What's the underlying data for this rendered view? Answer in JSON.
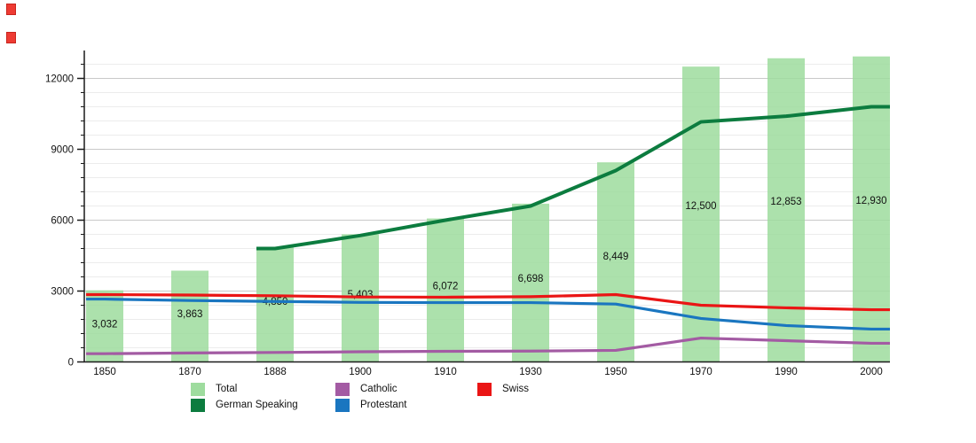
{
  "decorations": {
    "top_left_squares": {
      "count": 2,
      "color": "#ee3b33"
    }
  },
  "chart_data": {
    "type": "bar",
    "title": "",
    "xlabel": "",
    "ylabel": "",
    "categories": [
      "1850",
      "1870",
      "1888",
      "1900",
      "1910",
      "1930",
      "1950",
      "1970",
      "1990",
      "2000"
    ],
    "ylim": [
      0,
      12930
    ],
    "yticks": [
      0,
      3000,
      6000,
      9000,
      12000
    ],
    "y_tick_labels": [
      "0",
      "3000",
      "6000",
      "9000",
      "12000"
    ],
    "minor_grid_step": 600,
    "grid": true,
    "legend_position": "bottom",
    "bar_series": {
      "name": "Total",
      "color": "#9edc9e",
      "values": [
        3032,
        3863,
        4850,
        5403,
        6072,
        6698,
        8449,
        12500,
        12853,
        12930
      ],
      "labels": [
        "3,032",
        "3,863",
        "4,850",
        "5,403",
        "6,072",
        "6,698",
        "8,449",
        "12,500",
        "12,853",
        "12,930"
      ]
    },
    "line_series": [
      {
        "name": "German Speaking",
        "color": "#0c7c3f",
        "width": 4,
        "values": [
          null,
          null,
          4800,
          5350,
          6000,
          6600,
          8100,
          10160,
          10400,
          10800
        ]
      },
      {
        "name": "Catholic",
        "color": "#a35ba3",
        "width": 3.2,
        "values": [
          350,
          380,
          400,
          430,
          450,
          460,
          490,
          1010,
          900,
          790
        ]
      },
      {
        "name": "Protestant",
        "color": "#1a76c0",
        "width": 3.2,
        "values": [
          2660,
          2600,
          2560,
          2520,
          2510,
          2510,
          2450,
          1840,
          1540,
          1390
        ]
      },
      {
        "name": "Swiss",
        "color": "#ea1515",
        "width": 3.2,
        "values": [
          2850,
          2830,
          2800,
          2750,
          2740,
          2760,
          2850,
          2400,
          2290,
          2210
        ]
      }
    ],
    "legend_columns": [
      {
        "x": 215,
        "entries": [
          "Total",
          "German Speaking"
        ]
      },
      {
        "x": 378,
        "entries": [
          "Catholic",
          "Protestant"
        ]
      },
      {
        "x": 538,
        "entries": [
          "Swiss"
        ]
      }
    ]
  }
}
